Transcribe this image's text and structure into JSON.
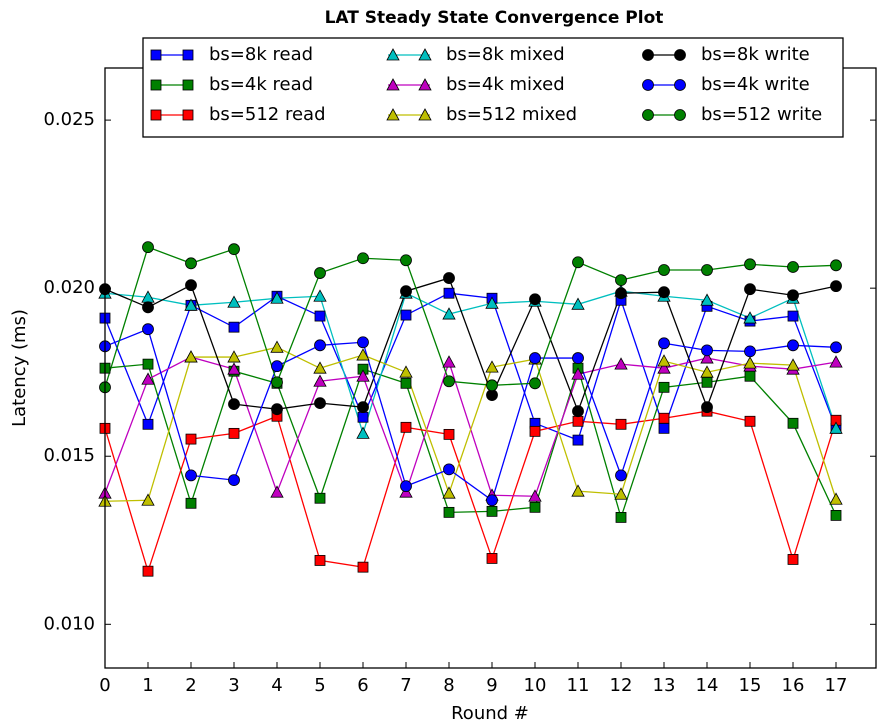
{
  "chart_data": {
    "type": "line",
    "title": "LAT Steady State Convergence Plot",
    "x_label": "Round #",
    "y_label": "Latency (ms)",
    "x": [
      0,
      1,
      2,
      3,
      4,
      5,
      6,
      7,
      8,
      9,
      10,
      11,
      12,
      13,
      14,
      15,
      16,
      17
    ],
    "xlim": [
      0,
      17.93
    ],
    "xticks": [
      0,
      1,
      2,
      3,
      4,
      5,
      6,
      7,
      8,
      9,
      10,
      11,
      12,
      13,
      14,
      15,
      16,
      17
    ],
    "ylim": [
      0.0087,
      0.02655
    ],
    "yticks": [
      {
        "value": 0.01,
        "label": "0.010"
      },
      0.015,
      {
        "value": 0.02,
        "label": "0.020"
      },
      0.025
    ],
    "legend": "upper center",
    "series": [
      {
        "name": "bs=8k read",
        "color": "#0000ff",
        "marker": "square",
        "values": [
          0.01911,
          0.01595,
          0.01949,
          0.01884,
          0.01976,
          0.01917,
          0.01616,
          0.0192,
          0.01985,
          0.0197,
          0.01598,
          0.01548,
          0.01964,
          0.01583,
          0.01946,
          0.01902,
          0.01917,
          0.01583
        ]
      },
      {
        "name": "bs=4k read",
        "color": "#008000",
        "marker": "square",
        "values": [
          0.01762,
          0.01774,
          0.0136,
          0.01753,
          0.01717,
          0.01375,
          0.01759,
          0.01717,
          0.01333,
          0.01336,
          0.01348,
          0.01762,
          0.01318,
          0.01705,
          0.0172,
          0.01738,
          0.01598,
          0.01324
        ]
      },
      {
        "name": "bs=512 read",
        "color": "#ff0000",
        "marker": "square",
        "values": [
          0.01583,
          0.01158,
          0.01551,
          0.01568,
          0.01619,
          0.0119,
          0.0117,
          0.01586,
          0.01565,
          0.01196,
          0.01574,
          0.01604,
          0.01595,
          0.01613,
          0.01634,
          0.01604,
          0.01193,
          0.01607
        ]
      },
      {
        "name": "bs=8k mixed",
        "color": "#00bfbf",
        "marker": "triangle",
        "values": [
          0.01985,
          0.01973,
          0.01949,
          0.01958,
          0.0197,
          0.01976,
          0.01568,
          0.01985,
          0.01923,
          0.01955,
          0.01961,
          0.01952,
          0.01991,
          0.01976,
          0.01964,
          0.01911,
          0.0197,
          0.01583
        ]
      },
      {
        "name": "bs=4k mixed",
        "color": "#bf00bf",
        "marker": "triangle",
        "values": [
          0.0139,
          0.01729,
          0.01795,
          0.01759,
          0.01393,
          0.01723,
          0.01738,
          0.01393,
          0.0178,
          0.01384,
          0.01381,
          0.01744,
          0.01774,
          0.01762,
          0.01792,
          0.01768,
          0.01759,
          0.0178
        ]
      },
      {
        "name": "bs=512 mixed",
        "color": "#bfbf00",
        "marker": "triangle",
        "values": [
          0.01366,
          0.01369,
          0.01795,
          0.01795,
          0.01824,
          0.01762,
          0.01801,
          0.0175,
          0.0139,
          0.01765,
          0.01789,
          0.01396,
          0.01387,
          0.01783,
          0.0175,
          0.01777,
          0.01771,
          0.01372
        ]
      },
      {
        "name": "bs=8k write",
        "color": "#000000",
        "marker": "circle",
        "values": [
          0.01997,
          0.01943,
          0.02009,
          0.01655,
          0.0164,
          0.01658,
          0.01646,
          0.01991,
          0.0203,
          0.01682,
          0.01967,
          0.01634,
          0.01985,
          0.01988,
          0.01646,
          0.01997,
          0.01979,
          0.02006
        ]
      },
      {
        "name": "bs=4k write",
        "color": "#0000ff",
        "marker": "circle",
        "values": [
          0.01827,
          0.01878,
          0.01443,
          0.01429,
          0.01768,
          0.0183,
          0.01839,
          0.01411,
          0.01461,
          0.01369,
          0.01792,
          0.01792,
          0.01443,
          0.01836,
          0.01815,
          0.01812,
          0.0183,
          0.01824
        ]
      },
      {
        "name": "bs=512 write",
        "color": "#008000",
        "marker": "circle",
        "values": [
          0.01705,
          0.02122,
          0.02074,
          0.02116,
          0.0172,
          0.02045,
          0.02089,
          0.02083,
          0.01723,
          0.01711,
          0.01717,
          0.02077,
          0.02024,
          0.02054,
          0.02054,
          0.02071,
          0.02063,
          0.02068
        ]
      }
    ]
  }
}
